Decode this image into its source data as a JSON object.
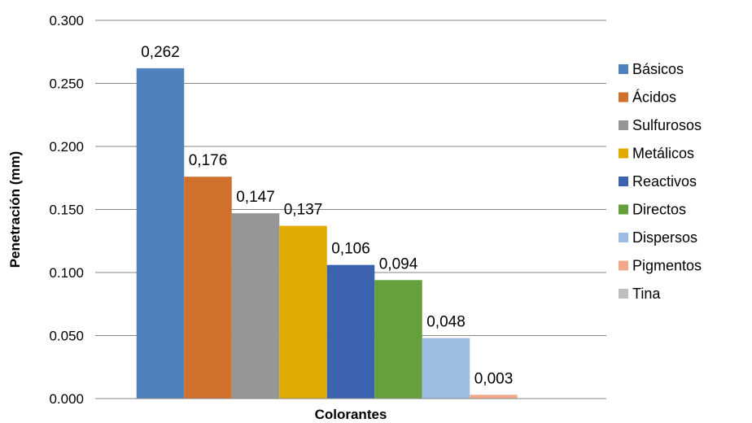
{
  "chart_data": {
    "type": "bar",
    "title": "",
    "xlabel": "Colorantes",
    "ylabel": "Penetración (mm)",
    "ylim": [
      0,
      0.3
    ],
    "yticks": [
      "0.000",
      "0.050",
      "0.100",
      "0.150",
      "0.200",
      "0.250",
      "0.300"
    ],
    "grid": true,
    "legend_position": "right",
    "series": [
      {
        "name": "Básicos",
        "value": 0.262,
        "label": "0,262",
        "color": "#4F81BD"
      },
      {
        "name": "Ácidos",
        "value": 0.176,
        "label": "0,176",
        "color": "#D0702C"
      },
      {
        "name": "Sulfurosos",
        "value": 0.147,
        "label": "0,147",
        "color": "#969696"
      },
      {
        "name": "Metálicos",
        "value": 0.137,
        "label": "0,137",
        "color": "#E1AA00"
      },
      {
        "name": "Reactivos",
        "value": 0.106,
        "label": "0,106",
        "color": "#3C63AF"
      },
      {
        "name": "Directos",
        "value": 0.094,
        "label": "0,094",
        "color": "#64A03C"
      },
      {
        "name": "Dispersos",
        "value": 0.048,
        "label": "0,048",
        "color": "#9DBDE3"
      },
      {
        "name": "Pigmentos",
        "value": 0.003,
        "label": "0,003",
        "color": "#F2A98A"
      },
      {
        "name": "Tina",
        "value": 0,
        "label": "",
        "color": "#BFBFBF"
      }
    ]
  }
}
